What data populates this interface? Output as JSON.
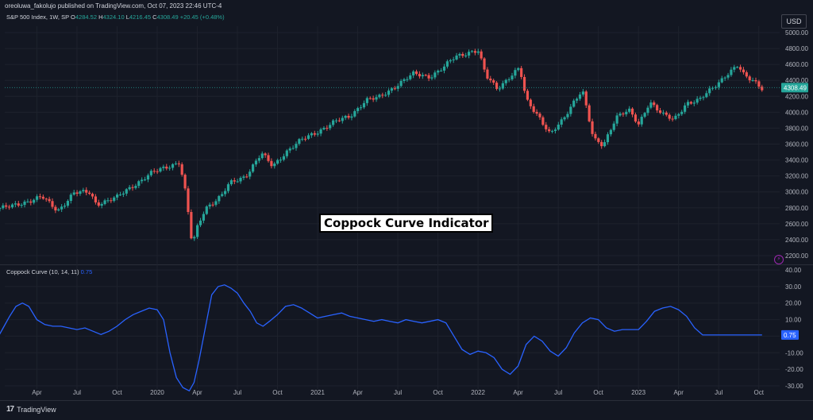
{
  "header": {
    "publisher": "oreoluwa_fakolujo published on TradingView.com, Oct 07, 2023 22:46 UTC-4",
    "symbol": "S&P 500 Index, 1W, SP",
    "ohlc": [
      {
        "k": "O",
        "v": "4284.52"
      },
      {
        "k": "H",
        "v": "4324.10"
      },
      {
        "k": "L",
        "v": "4216.45"
      },
      {
        "k": "C",
        "v": "4308.49"
      }
    ],
    "change": "+20.45 (+0.48%)",
    "currency": "USD"
  },
  "banner": "Coppock Curve Indicator",
  "footer": {
    "brand_mark": "17",
    "brand_name": "TradingView"
  },
  "colors": {
    "bg": "#131722",
    "up": "#26a69a",
    "down": "#ef5350",
    "coppock": "#2962ff",
    "grid": "#1e222d",
    "axis_text": "#b2b5be"
  },
  "chart_data": [
    {
      "type": "candlestick",
      "title": "S&P 500 Index, 1W, SP",
      "ylim": [
        2100,
        5050
      ],
      "y_ticks": [
        2200,
        2400,
        2600,
        2800,
        3000,
        3200,
        3400,
        3600,
        3800,
        4000,
        4200,
        4400,
        4600,
        4800,
        5000
      ],
      "y_tick_labels": [
        "2200.00",
        "2400.00",
        "2600.00",
        "2800.00",
        "3000.00",
        "3200.00",
        "3400.00",
        "3600.00",
        "3800.00",
        "4000.00",
        "4200.00",
        "4400.00",
        "4600.00",
        "4800.00",
        "5000.00"
      ],
      "last_price_label": "4308.49",
      "x_labels": [
        "Apr",
        "Jul",
        "Oct",
        "2020",
        "Apr",
        "Jul",
        "Oct",
        "2021",
        "Apr",
        "Jul",
        "Oct",
        "2022",
        "Apr",
        "Jul",
        "Oct",
        "2023",
        "Apr",
        "Jul",
        "Oct"
      ],
      "x_label_dates": [
        2019.25,
        2019.5,
        2019.75,
        2020.0,
        2020.25,
        2020.5,
        2020.75,
        2021.0,
        2021.25,
        2021.5,
        2021.75,
        2022.0,
        2022.25,
        2022.5,
        2022.75,
        2023.0,
        2023.25,
        2023.5,
        2023.75
      ],
      "close_path": [
        [
          2019.0,
          2790
        ],
        [
          2019.1,
          2820
        ],
        [
          2019.2,
          2890
        ],
        [
          2019.28,
          2940
        ],
        [
          2019.38,
          2760
        ],
        [
          2019.48,
          2990
        ],
        [
          2019.58,
          2990
        ],
        [
          2019.62,
          2850
        ],
        [
          2019.75,
          2930
        ],
        [
          2019.85,
          3080
        ],
        [
          2019.96,
          3230
        ],
        [
          2020.08,
          3330
        ],
        [
          2020.14,
          3380
        ],
        [
          2020.18,
          2950
        ],
        [
          2020.22,
          2300
        ],
        [
          2020.24,
          2500
        ],
        [
          2020.3,
          2800
        ],
        [
          2020.4,
          2950
        ],
        [
          2020.45,
          3100
        ],
        [
          2020.55,
          3200
        ],
        [
          2020.65,
          3480
        ],
        [
          2020.72,
          3320
        ],
        [
          2020.8,
          3500
        ],
        [
          2020.9,
          3650
        ],
        [
          2021.0,
          3760
        ],
        [
          2021.1,
          3870
        ],
        [
          2021.2,
          3950
        ],
        [
          2021.3,
          4150
        ],
        [
          2021.38,
          4180
        ],
        [
          2021.5,
          4350
        ],
        [
          2021.6,
          4480
        ],
        [
          2021.7,
          4450
        ],
        [
          2021.78,
          4550
        ],
        [
          2021.86,
          4700
        ],
        [
          2021.95,
          4760
        ],
        [
          2022.0,
          4770
        ],
        [
          2022.05,
          4450
        ],
        [
          2022.12,
          4300
        ],
        [
          2022.2,
          4450
        ],
        [
          2022.26,
          4550
        ],
        [
          2022.3,
          4150
        ],
        [
          2022.38,
          3950
        ],
        [
          2022.45,
          3720
        ],
        [
          2022.53,
          3900
        ],
        [
          2022.6,
          4150
        ],
        [
          2022.65,
          4290
        ],
        [
          2022.72,
          3650
        ],
        [
          2022.78,
          3580
        ],
        [
          2022.86,
          3950
        ],
        [
          2022.94,
          4020
        ],
        [
          2023.0,
          3840
        ],
        [
          2023.07,
          4140
        ],
        [
          2023.15,
          3970
        ],
        [
          2023.22,
          3900
        ],
        [
          2023.3,
          4120
        ],
        [
          2023.38,
          4150
        ],
        [
          2023.46,
          4300
        ],
        [
          2023.55,
          4480
        ],
        [
          2023.62,
          4580
        ],
        [
          2023.66,
          4450
        ],
        [
          2023.72,
          4400
        ],
        [
          2023.77,
          4308
        ]
      ]
    },
    {
      "type": "line",
      "title": "Coppock Curve (10, 14, 11)",
      "last_value_label": "0.75",
      "ylim": [
        -30,
        40
      ],
      "y_ticks": [
        -30,
        -20,
        -10,
        0,
        10,
        20,
        30,
        40
      ],
      "y_tick_labels": [
        "-30.00",
        "-20.00",
        "-10.00",
        "0.00",
        "10.00",
        "20.00",
        "30.00",
        "40.00"
      ],
      "series": [
        {
          "x": [
            2019.0,
            2019.04,
            2019.08,
            2019.12,
            2019.16,
            2019.2,
            2019.25,
            2019.3,
            2019.35,
            2019.4,
            2019.45,
            2019.5,
            2019.55,
            2019.6,
            2019.65,
            2019.7,
            2019.75,
            2019.8,
            2019.85,
            2019.9,
            2019.95,
            2020.0,
            2020.04,
            2020.08,
            2020.12,
            2020.16,
            2020.2,
            2020.23,
            2020.26,
            2020.3,
            2020.34,
            2020.38,
            2020.42,
            2020.46,
            2020.5,
            2020.54,
            2020.58,
            2020.62,
            2020.66,
            2020.7,
            2020.75,
            2020.8,
            2020.85,
            2020.9,
            2020.95,
            2021.0,
            2021.05,
            2021.1,
            2021.15,
            2021.2,
            2021.25,
            2021.3,
            2021.35,
            2021.4,
            2021.45,
            2021.5,
            2021.55,
            2021.6,
            2021.65,
            2021.7,
            2021.75,
            2021.8,
            2021.85,
            2021.9,
            2021.95,
            2022.0,
            2022.05,
            2022.1,
            2022.15,
            2022.2,
            2022.25,
            2022.3,
            2022.35,
            2022.4,
            2022.45,
            2022.5,
            2022.55,
            2022.6,
            2022.65,
            2022.7,
            2022.75,
            2022.8,
            2022.85,
            2022.9,
            2022.95,
            2023.0,
            2023.05,
            2023.1,
            2023.15,
            2023.2,
            2023.25,
            2023.3,
            2023.35,
            2023.4,
            2023.45,
            2023.5,
            2023.55,
            2023.6,
            2023.65,
            2023.7,
            2023.75,
            2023.77
          ],
          "y": [
            -2,
            5,
            12,
            18,
            20,
            18,
            10,
            7,
            6,
            6,
            5,
            4,
            5,
            3,
            1,
            3,
            6,
            10,
            13,
            15,
            17,
            16,
            10,
            -10,
            -25,
            -31,
            -33,
            -28,
            -15,
            5,
            25,
            30,
            31,
            29,
            26,
            20,
            15,
            8,
            6,
            9,
            13,
            18,
            19,
            17,
            14,
            11,
            12,
            13,
            14,
            12,
            11,
            10,
            9,
            10,
            9,
            8,
            10,
            9,
            8,
            9,
            10,
            8,
            0,
            -8,
            -11,
            -9,
            -10,
            -13,
            -20,
            -23,
            -18,
            -5,
            0,
            -3,
            -9,
            -12,
            -7,
            2,
            8,
            11,
            10,
            5,
            3,
            4,
            4,
            4,
            9,
            15,
            17,
            18,
            16,
            12,
            5,
            0.75,
            0.75,
            0.75,
            0.75,
            0.75,
            0.75,
            0.75,
            0.75,
            0.75
          ]
        }
      ]
    }
  ]
}
